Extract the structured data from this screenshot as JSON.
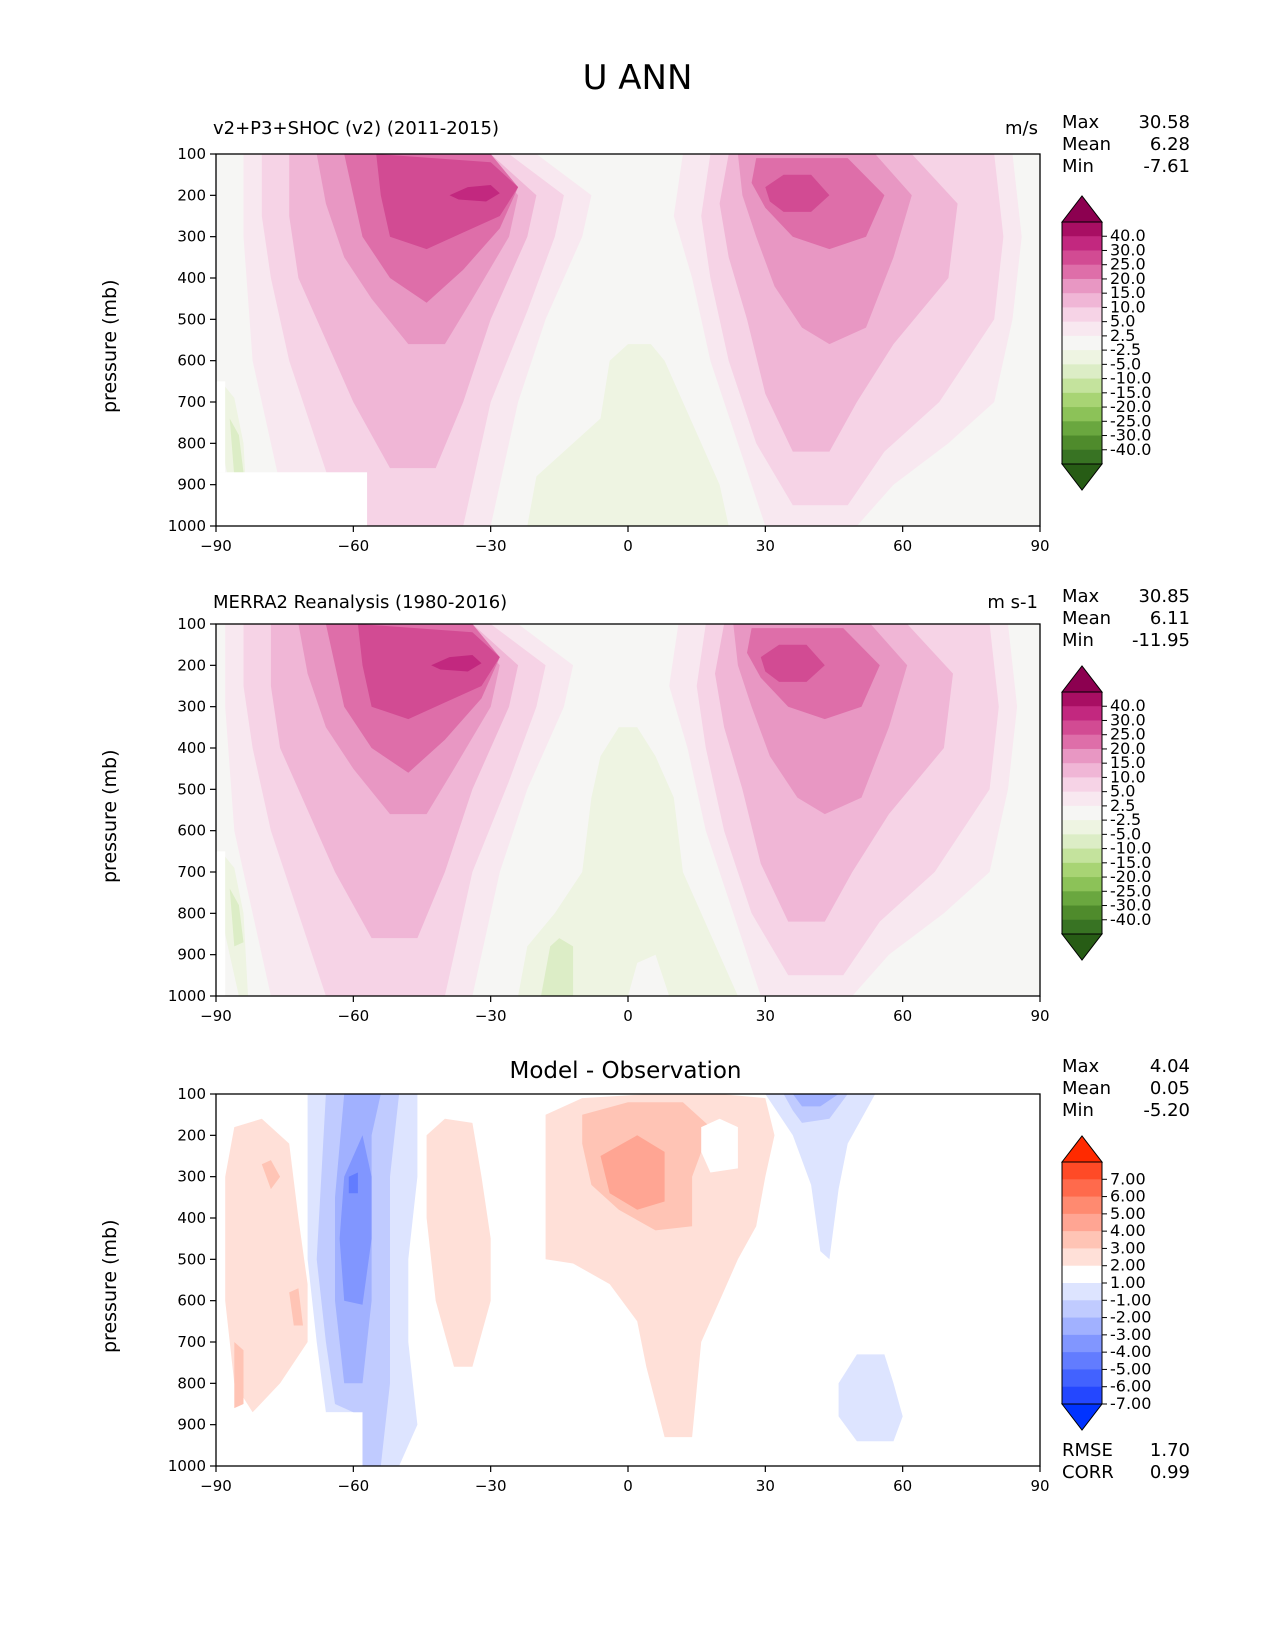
{
  "figure_title": "U ANN",
  "panels": [
    {
      "title_left": "v2+P3+SHOC (v2) (2011-2015)",
      "title_right": "m/s",
      "title_center": "",
      "ylabel": "pressure (mb)",
      "stats": [
        {
          "label": "Max",
          "value": "30.58"
        },
        {
          "label": "Mean",
          "value": "6.28"
        },
        {
          "label": "Min",
          "value": "-7.61"
        }
      ],
      "colorbar_labels": [
        "40.0",
        "30.0",
        "25.0",
        "20.0",
        "15.0",
        "10.0",
        "5.0",
        "2.5",
        "-2.5",
        "-5.0",
        "-10.0",
        "-15.0",
        "-20.0",
        "-25.0",
        "-30.0",
        "-40.0"
      ],
      "colors": {
        "max_ext": "#8c0050",
        "min_ext": "#275c15",
        "bands": [
          "#a80e63",
          "#c2287f",
          "#d24b93",
          "#de6ea9",
          "#e897c3",
          "#f0b6d6",
          "#f6d3e6",
          "#f8e8f0",
          "#f6f6f4",
          "#eef4e2",
          "#dcedc6",
          "#c4e39d",
          "#a8d474",
          "#8cc258",
          "#6aa73f",
          "#4f8b2c",
          "#387323"
        ]
      }
    },
    {
      "title_left": "MERRA2 Reanalysis (1980-2016)",
      "title_right": "m s-1",
      "title_center": "",
      "ylabel": "pressure (mb)",
      "stats": [
        {
          "label": "Max",
          "value": "30.85"
        },
        {
          "label": "Mean",
          "value": "6.11"
        },
        {
          "label": "Min",
          "value": "-11.95"
        }
      ],
      "colorbar_labels": [
        "40.0",
        "30.0",
        "25.0",
        "20.0",
        "15.0",
        "10.0",
        "5.0",
        "2.5",
        "-2.5",
        "-5.0",
        "-10.0",
        "-15.0",
        "-20.0",
        "-25.0",
        "-30.0",
        "-40.0"
      ],
      "colors": {
        "max_ext": "#8c0050",
        "min_ext": "#275c15",
        "bands": [
          "#a80e63",
          "#c2287f",
          "#d24b93",
          "#de6ea9",
          "#e897c3",
          "#f0b6d6",
          "#f6d3e6",
          "#f8e8f0",
          "#f6f6f4",
          "#eef4e2",
          "#dcedc6",
          "#c4e39d",
          "#a8d474",
          "#8cc258",
          "#6aa73f",
          "#4f8b2c",
          "#387323"
        ]
      }
    },
    {
      "title_left": "",
      "title_right": "",
      "title_center": "Model - Observation",
      "ylabel": "pressure (mb)",
      "stats": [
        {
          "label": "Max",
          "value": "4.04"
        },
        {
          "label": "Mean",
          "value": "0.05"
        },
        {
          "label": "Min",
          "value": "-5.20"
        }
      ],
      "extra_stats": [
        {
          "label": "RMSE",
          "value": "1.70"
        },
        {
          "label": "CORR",
          "value": "0.99"
        }
      ],
      "colorbar_labels": [
        "7.00",
        "6.00",
        "5.00",
        "4.00",
        "3.00",
        "2.00",
        "1.00",
        "-1.00",
        "-2.00",
        "-3.00",
        "-4.00",
        "-5.00",
        "-6.00",
        "-7.00"
      ],
      "colors": {
        "max_ext": "#ff2a00",
        "min_ext": "#0033ff",
        "bands": [
          "#ff4a26",
          "#ff6a4c",
          "#ff8a70",
          "#ffa593",
          "#ffc4b5",
          "#ffe0d8",
          "#ffffff",
          "#dde4ff",
          "#c0cbff",
          "#a1b1ff",
          "#8196ff",
          "#627cff",
          "#4262ff",
          "#2447ff"
        ]
      }
    }
  ],
  "chart_data": [
    {
      "type": "heatmap",
      "title": "v2+P3+SHOC (v2) (2011-2015)",
      "units": "m/s",
      "xlabel": "",
      "ylabel": "pressure (mb)",
      "xlim": [
        -90,
        90
      ],
      "ylim": [
        1000,
        100
      ],
      "x_ticks": [
        "−90",
        "−60",
        "−30",
        "0",
        "30",
        "60",
        "90"
      ],
      "y_ticks": [
        "100",
        "200",
        "300",
        "400",
        "500",
        "600",
        "700",
        "800",
        "900",
        "1000"
      ],
      "features": [
        {
          "name": "SH jet core",
          "lat": -40,
          "p": 200,
          "value": 30.58
        },
        {
          "name": "NH jet core",
          "lat": 36,
          "p": 200,
          "value": 25
        },
        {
          "name": "tropical easterlies",
          "lat": 5,
          "p": 800,
          "value": -5
        }
      ],
      "stats": {
        "max": 30.58,
        "mean": 6.28,
        "min": -7.61
      }
    },
    {
      "type": "heatmap",
      "title": "MERRA2 Reanalysis (1980-2016)",
      "units": "m s-1",
      "xlabel": "",
      "ylabel": "pressure (mb)",
      "xlim": [
        -90,
        90
      ],
      "ylim": [
        1000,
        100
      ],
      "x_ticks": [
        "−90",
        "−60",
        "−30",
        "0",
        "30",
        "60",
        "90"
      ],
      "y_ticks": [
        "100",
        "200",
        "300",
        "400",
        "500",
        "600",
        "700",
        "800",
        "900",
        "1000"
      ],
      "features": [
        {
          "name": "SH jet core",
          "lat": -33,
          "p": 200,
          "value": 30.85
        },
        {
          "name": "NH jet core",
          "lat": 34,
          "p": 200,
          "value": 25
        },
        {
          "name": "tropical easterlies",
          "lat": -15,
          "p": 900,
          "value": -11.95
        }
      ],
      "stats": {
        "max": 30.85,
        "mean": 6.11,
        "min": -11.95
      }
    },
    {
      "type": "heatmap",
      "title": "Model - Observation",
      "xlabel": "",
      "ylabel": "pressure (mb)",
      "xlim": [
        -90,
        90
      ],
      "ylim": [
        1000,
        100
      ],
      "x_ticks": [
        "−90",
        "−60",
        "−30",
        "0",
        "30",
        "60",
        "90"
      ],
      "y_ticks": [
        "100",
        "200",
        "300",
        "400",
        "500",
        "600",
        "700",
        "800",
        "900",
        "1000"
      ],
      "features": [
        {
          "name": "negative bias",
          "lat": -60,
          "p": 300,
          "value": -5.2
        },
        {
          "name": "positive bias",
          "lat": 0,
          "p": 300,
          "value": 4.04
        },
        {
          "name": "negative bias upper NH",
          "lat": 38,
          "p": 120,
          "value": -4
        }
      ],
      "stats": {
        "max": 4.04,
        "mean": 0.05,
        "min": -5.2,
        "rmse": 1.7,
        "corr": 0.99
      }
    }
  ]
}
